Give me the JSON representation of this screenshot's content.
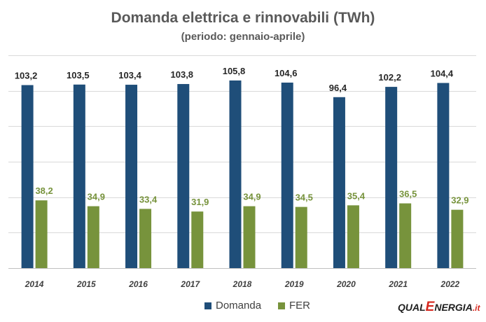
{
  "chart_data": {
    "type": "bar",
    "title": "Domanda elettrica e rinnovabili (TWh)",
    "subtitle": "(periodo: gennaio-aprile)",
    "categories": [
      "2014",
      "2015",
      "2016",
      "2017",
      "2018",
      "2019",
      "2020",
      "2021",
      "2022"
    ],
    "series": [
      {
        "name": "Domanda",
        "color": "#1f4e79",
        "values": [
          103.2,
          103.5,
          103.4,
          103.8,
          105.8,
          104.6,
          96.4,
          102.2,
          104.4
        ],
        "labels": [
          "103,2",
          "103,5",
          "103,4",
          "103,8",
          "105,8",
          "104,6",
          "96,4",
          "102,2",
          "104,4"
        ]
      },
      {
        "name": "FER",
        "color": "#77933c",
        "values": [
          38.2,
          34.9,
          33.4,
          31.9,
          34.9,
          34.5,
          35.4,
          36.5,
          32.9
        ],
        "labels": [
          "38,2",
          "34,9",
          "33,4",
          "31,9",
          "34,9",
          "34,5",
          "35,4",
          "36,5",
          "32,9"
        ]
      }
    ],
    "ylim": [
      0,
      120
    ],
    "grid": true,
    "legend_position": "bottom"
  },
  "logo": {
    "part1": "QUAL",
    "part2": "E",
    "part3": "NERGIA",
    "part4": ".it"
  }
}
